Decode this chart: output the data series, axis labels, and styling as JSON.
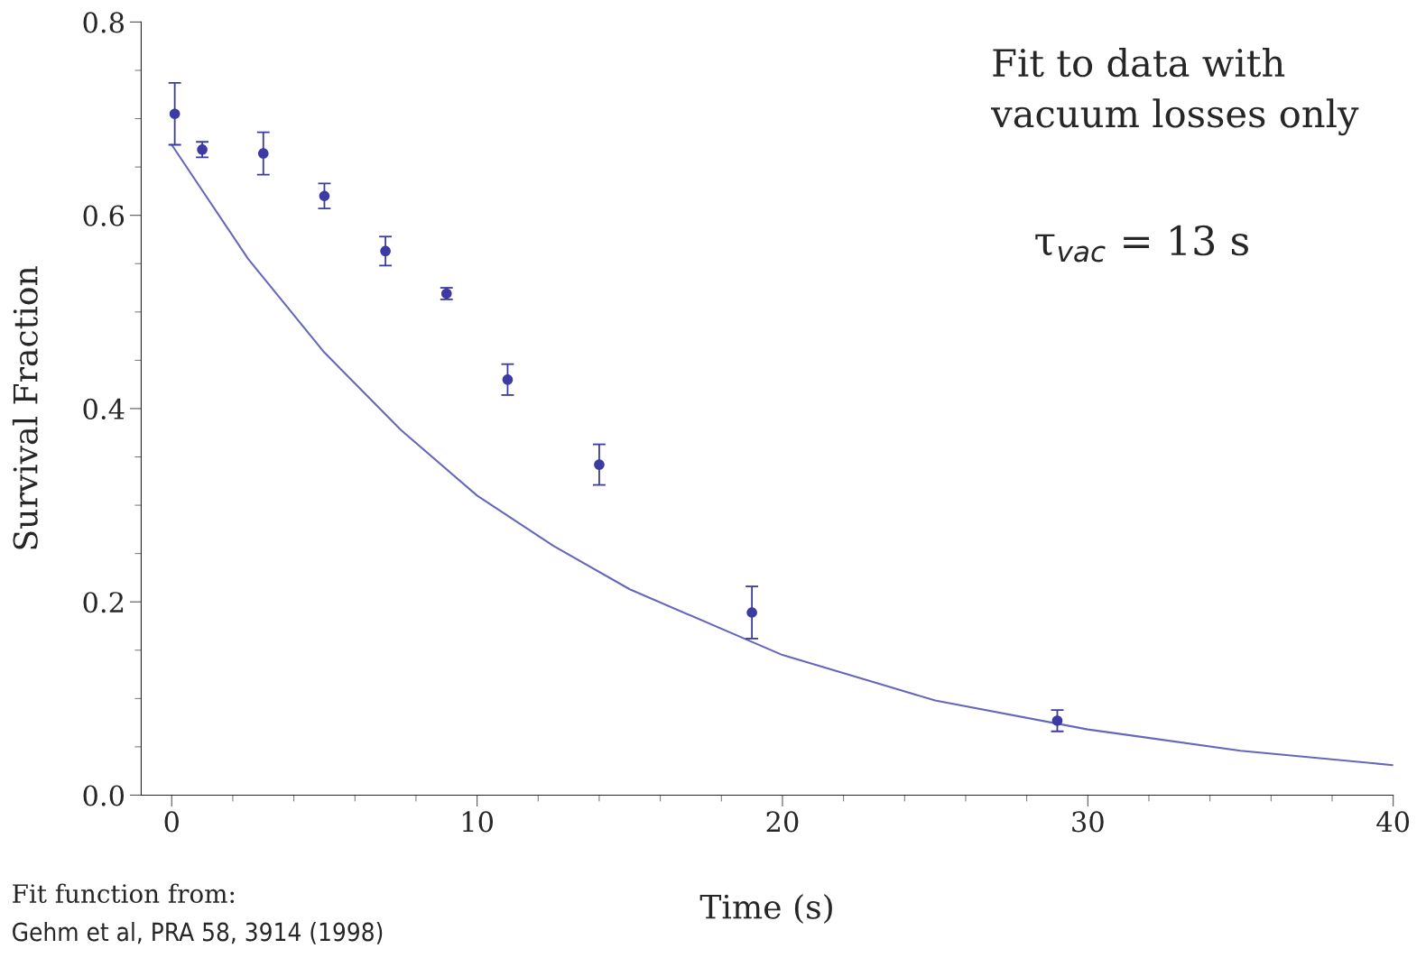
{
  "chart_data": {
    "type": "scatter",
    "xlabel": "Time (s)",
    "ylabel": "Survival Fraction",
    "xlim": [
      -1,
      40
    ],
    "ylim": [
      0,
      0.8
    ],
    "xticks": [
      0,
      10,
      20,
      30,
      40
    ],
    "yticks": [
      {
        "value": 0,
        "label": "0.0"
      },
      {
        "value": 0.2,
        "label": "0.2"
      },
      {
        "value": 0.4,
        "label": "0.4"
      },
      {
        "value": 0.6,
        "label": "0.6"
      },
      {
        "value": 0.8,
        "label": "0.8"
      }
    ],
    "grid": false,
    "legend": false,
    "marker": "circle",
    "series": [
      {
        "color": "#3b3ba3",
        "x": [
          0.1,
          1,
          3,
          5,
          7,
          9,
          11,
          14,
          19,
          29
        ],
        "values": [
          0.705,
          0.668,
          0.664,
          0.62,
          0.563,
          0.519,
          0.43,
          0.342,
          0.189,
          0.077
        ],
        "errors": [
          0.032,
          0.008,
          0.022,
          0.013,
          0.015,
          0.006,
          0.016,
          0.021,
          0.027,
          0.011
        ]
      },
      {
        "type": "line",
        "color": "#6666bb",
        "marker": "none",
        "x": [
          0,
          2.5,
          5,
          7.5,
          10,
          12.5,
          15,
          20,
          25,
          30,
          35,
          40
        ],
        "values": [
          0.673,
          0.555,
          0.458,
          0.378,
          0.31,
          0.258,
          0.213,
          0.145,
          0.098,
          0.068,
          0.046,
          0.031
        ]
      }
    ],
    "annotations": [
      "Fit to data with\nvacuum losses only",
      "τ$_{vac}$ = 13 s",
      "Fit function from:",
      "Gehm et al, PRA 58, 3914 (1998)"
    ]
  }
}
